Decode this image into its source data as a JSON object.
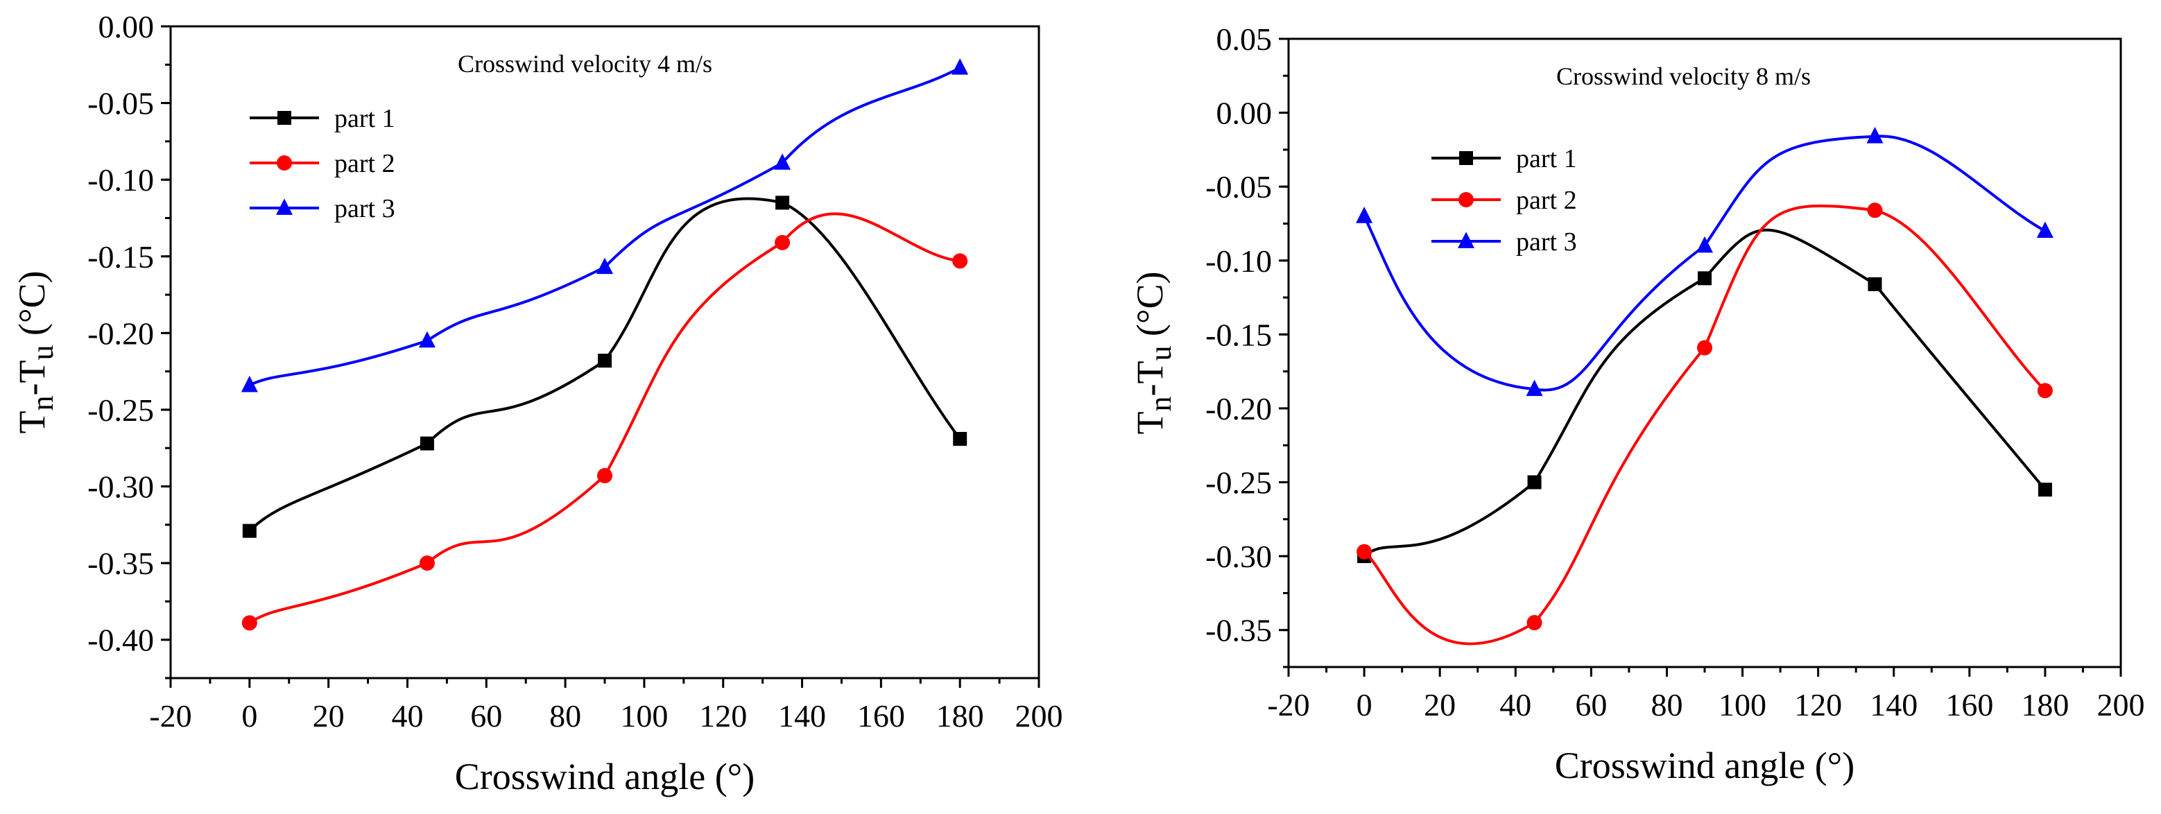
{
  "chart_data": [
    {
      "type": "line",
      "annotation": "Crosswind velocity 4 m/s",
      "xlabel": "Crosswind angle (°)",
      "ylabel_main": "T",
      "ylabel_sub1": "n",
      "ylabel_mid": "-T",
      "ylabel_sub2": "u",
      "ylabel_unit": " (°C)",
      "xlim": [
        -20,
        200
      ],
      "ylim": [
        -0.425,
        0
      ],
      "x_ticks": [
        -20,
        0,
        20,
        40,
        60,
        80,
        100,
        120,
        140,
        160,
        180,
        200
      ],
      "y_ticks": [
        0.0,
        -0.05,
        -0.1,
        -0.15,
        -0.2,
        -0.25,
        -0.3,
        -0.35,
        -0.4
      ],
      "legend_position": "upper-left",
      "grid": false,
      "x": [
        0,
        45,
        90,
        135,
        180
      ],
      "series": [
        {
          "name": "part 1",
          "color": "#000000",
          "marker": "square",
          "values": [
            -0.329,
            -0.272,
            -0.218,
            -0.115,
            -0.269
          ]
        },
        {
          "name": "part 2",
          "color": "#ff0000",
          "marker": "circle",
          "values": [
            -0.389,
            -0.35,
            -0.293,
            -0.141,
            -0.153
          ]
        },
        {
          "name": "part 3",
          "color": "#0000ff",
          "marker": "triangle",
          "values": [
            -0.234,
            -0.205,
            -0.157,
            -0.089,
            -0.027
          ]
        }
      ]
    },
    {
      "type": "line",
      "annotation": "Crosswind velocity 8 m/s",
      "xlabel": "Crosswind angle (°)",
      "ylabel_main": "T",
      "ylabel_sub1": "n",
      "ylabel_mid": "-T",
      "ylabel_sub2": "u",
      "ylabel_unit": " (°C)",
      "xlim": [
        -20,
        200
      ],
      "ylim": [
        -0.375,
        0.05
      ],
      "x_ticks": [
        -20,
        0,
        20,
        40,
        60,
        80,
        100,
        120,
        140,
        160,
        180,
        200
      ],
      "y_ticks": [
        0.05,
        0.0,
        -0.05,
        -0.1,
        -0.15,
        -0.2,
        -0.25,
        -0.3,
        -0.35
      ],
      "legend_position": "upper-left",
      "grid": false,
      "x": [
        0,
        45,
        90,
        135,
        180
      ],
      "series": [
        {
          "name": "part 1",
          "color": "#000000",
          "marker": "square",
          "values": [
            -0.3,
            -0.25,
            -0.112,
            -0.116,
            -0.255
          ]
        },
        {
          "name": "part 2",
          "color": "#ff0000",
          "marker": "circle",
          "values": [
            -0.297,
            -0.345,
            -0.159,
            -0.066,
            -0.188
          ]
        },
        {
          "name": "part 3",
          "color": "#0000ff",
          "marker": "triangle",
          "values": [
            -0.07,
            -0.187,
            -0.09,
            -0.016,
            -0.08
          ]
        }
      ]
    }
  ]
}
